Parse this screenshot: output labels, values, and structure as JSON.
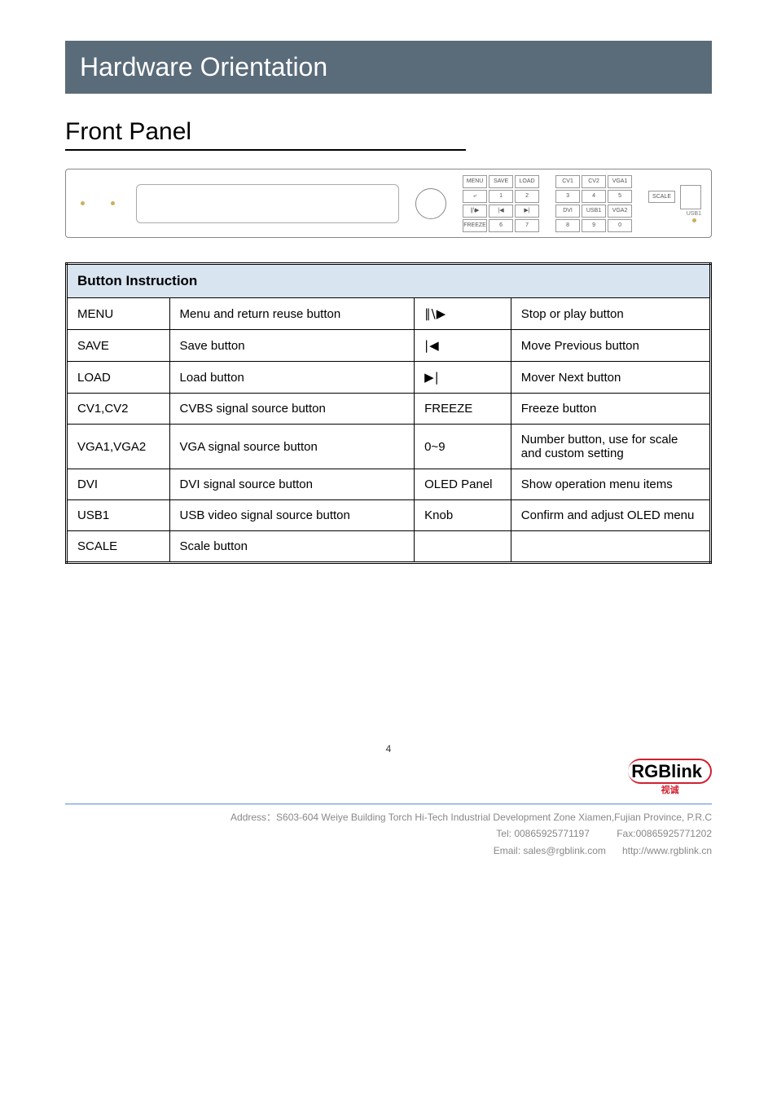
{
  "banner": "Hardware Orientation",
  "section_title": "Front Panel",
  "panel": {
    "grid1": {
      "r1": [
        "MENU",
        "SAVE",
        "LOAD"
      ],
      "r2": [
        "⤶",
        "1",
        "2"
      ],
      "r3": [
        "∥\\▶",
        "|◀",
        "▶|"
      ],
      "r4": [
        "FREEZE",
        "6",
        "7"
      ]
    },
    "grid2": {
      "r1": [
        "CV1",
        "CV2",
        "VGA1"
      ],
      "r2": [
        "3",
        "4",
        "5"
      ],
      "r3": [
        "DVI",
        "USB1",
        "VGA2"
      ],
      "r4": [
        "8",
        "9",
        "0"
      ]
    },
    "scale_label": "SCALE",
    "usb_label": "USB1"
  },
  "table": {
    "header": "Button Instruction",
    "rows": [
      {
        "a": "MENU",
        "b": "Menu and return reuse button",
        "c_sym": "∥\\▶",
        "d": "Stop or play button"
      },
      {
        "a": "SAVE",
        "b": "Save button",
        "c_sym": "|◀",
        "d": "Move Previous button"
      },
      {
        "a": "LOAD",
        "b": "Load button",
        "c_sym": "▶|",
        "d": "Mover Next button"
      },
      {
        "a": "CV1,CV2",
        "b": "CVBS signal source button",
        "c": "FREEZE",
        "d": "Freeze button"
      },
      {
        "a": "VGA1,VGA2",
        "b": "VGA signal source button",
        "c": "0~9",
        "d": "Number button, use for scale and custom setting"
      },
      {
        "a": "DVI",
        "b": "DVI signal source button",
        "c": "OLED Panel",
        "d": "Show operation menu items"
      },
      {
        "a": "USB1",
        "b": "USB video signal source button",
        "c": "Knob",
        "d": "Confirm and adjust OLED menu"
      },
      {
        "a": "SCALE",
        "b": "Scale button",
        "c": "",
        "d": ""
      }
    ]
  },
  "page_number": "4",
  "logo": {
    "main": "RGBlink",
    "sub": "视诚"
  },
  "footer": {
    "address": "Address：S603-604 Weiye Building Torch Hi-Tech Industrial Development Zone Xiamen,Fujian Province, P.R.C",
    "tel_label": "Tel:",
    "tel": "00865925771197",
    "fax_label": "Fax:",
    "fax": "00865925771202",
    "email_label": "Email:",
    "email": "sales@rgblink.com",
    "site": "http://www.rgblink.cn"
  }
}
